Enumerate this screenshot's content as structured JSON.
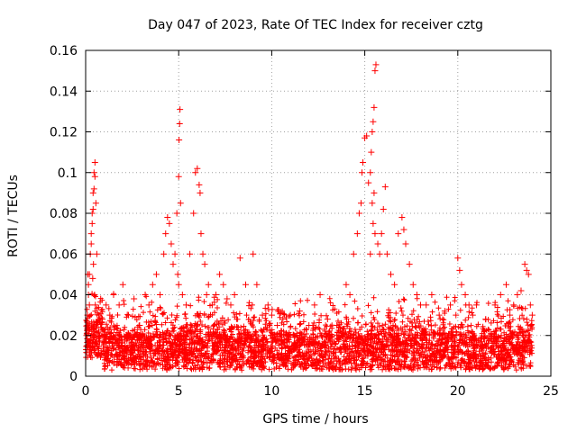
{
  "chart_data": {
    "type": "scatter",
    "title": "Day 047 of 2023, Rate Of TEC Index for receiver cztg",
    "xlabel": "GPS time / hours",
    "ylabel": "ROTI / TECUs",
    "xlim": [
      0,
      25
    ],
    "ylim": [
      0,
      0.16
    ],
    "x_ticks": [
      0,
      5,
      10,
      15,
      20,
      25
    ],
    "x_tick_labels": [
      "0",
      "5",
      "10",
      "15",
      "20",
      "25"
    ],
    "y_ticks": [
      0,
      0.02,
      0.04,
      0.06,
      0.08,
      0.1,
      0.12,
      0.14,
      0.16
    ],
    "y_tick_labels": [
      "0",
      "0.02",
      "0.04",
      "0.06",
      "0.08",
      "0.1",
      "0.12",
      "0.14",
      "0.16"
    ],
    "grid": true,
    "marker": "+",
    "series": [
      {
        "name": "ROTI",
        "color": "#ff0000",
        "x": [
          0.05,
          0.1,
          0.15,
          0.2,
          0.25,
          0.3,
          0.35,
          0.4,
          0.45,
          0.5,
          0.55,
          0.6,
          0.3,
          0.35,
          0.4,
          0.45,
          0.5,
          0.42,
          0.38,
          0.48,
          0.52,
          0.2,
          0.15,
          0.1,
          0.12,
          0.08,
          0.7,
          0.9,
          1.1,
          1.3,
          1.5,
          1.8,
          2.0,
          2.3,
          2.6,
          2.9,
          3.2,
          3.4,
          3.6,
          3.8,
          4.0,
          4.2,
          4.3,
          4.4,
          4.5,
          4.6,
          4.7,
          4.8,
          4.9,
          5.0,
          5.02,
          5.05,
          5.07,
          5.1,
          4.95,
          5.0,
          5.2,
          5.4,
          5.6,
          5.8,
          5.9,
          6.0,
          6.1,
          6.15,
          6.2,
          6.3,
          6.4,
          6.5,
          6.6,
          6.8,
          7.0,
          7.2,
          7.4,
          7.6,
          7.8,
          8.0,
          8.3,
          8.6,
          9.0,
          9.2,
          9.5,
          9.8,
          10.0,
          10.3,
          10.6,
          11.0,
          11.5,
          12.0,
          12.3,
          12.6,
          13.0,
          13.5,
          14.0,
          14.2,
          14.4,
          14.6,
          14.7,
          14.8,
          14.85,
          14.9,
          15.0,
          15.1,
          15.2,
          15.3,
          15.35,
          15.4,
          15.45,
          15.5,
          15.55,
          15.6,
          15.4,
          15.5,
          15.45,
          15.55,
          15.3,
          15.7,
          15.8,
          15.9,
          16.0,
          16.1,
          16.2,
          16.4,
          16.6,
          16.8,
          17.0,
          17.1,
          17.2,
          17.4,
          17.6,
          17.8,
          18.0,
          18.3,
          18.6,
          19.0,
          19.3,
          19.6,
          19.9,
          20.0,
          20.1,
          20.2,
          20.4,
          20.6,
          20.8,
          21.0,
          21.5,
          22.0,
          22.3,
          22.6,
          22.8,
          23.0,
          23.2,
          23.4,
          23.6,
          23.7,
          23.8,
          23.9,
          24.0
        ],
        "y": [
          0.02,
          0.03,
          0.045,
          0.05,
          0.06,
          0.07,
          0.08,
          0.09,
          0.1,
          0.105,
          0.085,
          0.06,
          0.065,
          0.075,
          0.082,
          0.092,
          0.098,
          0.055,
          0.048,
          0.04,
          0.035,
          0.035,
          0.04,
          0.025,
          0.05,
          0.015,
          0.03,
          0.028,
          0.035,
          0.03,
          0.04,
          0.035,
          0.045,
          0.03,
          0.038,
          0.025,
          0.04,
          0.035,
          0.045,
          0.05,
          0.04,
          0.06,
          0.07,
          0.078,
          0.075,
          0.065,
          0.055,
          0.06,
          0.08,
          0.098,
          0.116,
          0.124,
          0.131,
          0.085,
          0.05,
          0.045,
          0.04,
          0.035,
          0.06,
          0.08,
          0.1,
          0.102,
          0.094,
          0.09,
          0.07,
          0.06,
          0.055,
          0.04,
          0.045,
          0.035,
          0.04,
          0.05,
          0.045,
          0.038,
          0.035,
          0.04,
          0.058,
          0.045,
          0.06,
          0.045,
          0.03,
          0.035,
          0.03,
          0.025,
          0.028,
          0.03,
          0.032,
          0.025,
          0.035,
          0.04,
          0.028,
          0.025,
          0.045,
          0.04,
          0.06,
          0.07,
          0.08,
          0.085,
          0.1,
          0.105,
          0.117,
          0.118,
          0.095,
          0.1,
          0.11,
          0.12,
          0.125,
          0.132,
          0.15,
          0.153,
          0.085,
          0.09,
          0.075,
          0.07,
          0.06,
          0.065,
          0.06,
          0.07,
          0.082,
          0.093,
          0.06,
          0.05,
          0.045,
          0.07,
          0.078,
          0.072,
          0.065,
          0.055,
          0.045,
          0.04,
          0.035,
          0.035,
          0.04,
          0.03,
          0.032,
          0.035,
          0.03,
          0.058,
          0.052,
          0.045,
          0.04,
          0.035,
          0.03,
          0.035,
          0.028,
          0.035,
          0.04,
          0.045,
          0.03,
          0.035,
          0.04,
          0.042,
          0.055,
          0.052,
          0.05,
          0.035,
          0.03
        ]
      }
    ]
  }
}
